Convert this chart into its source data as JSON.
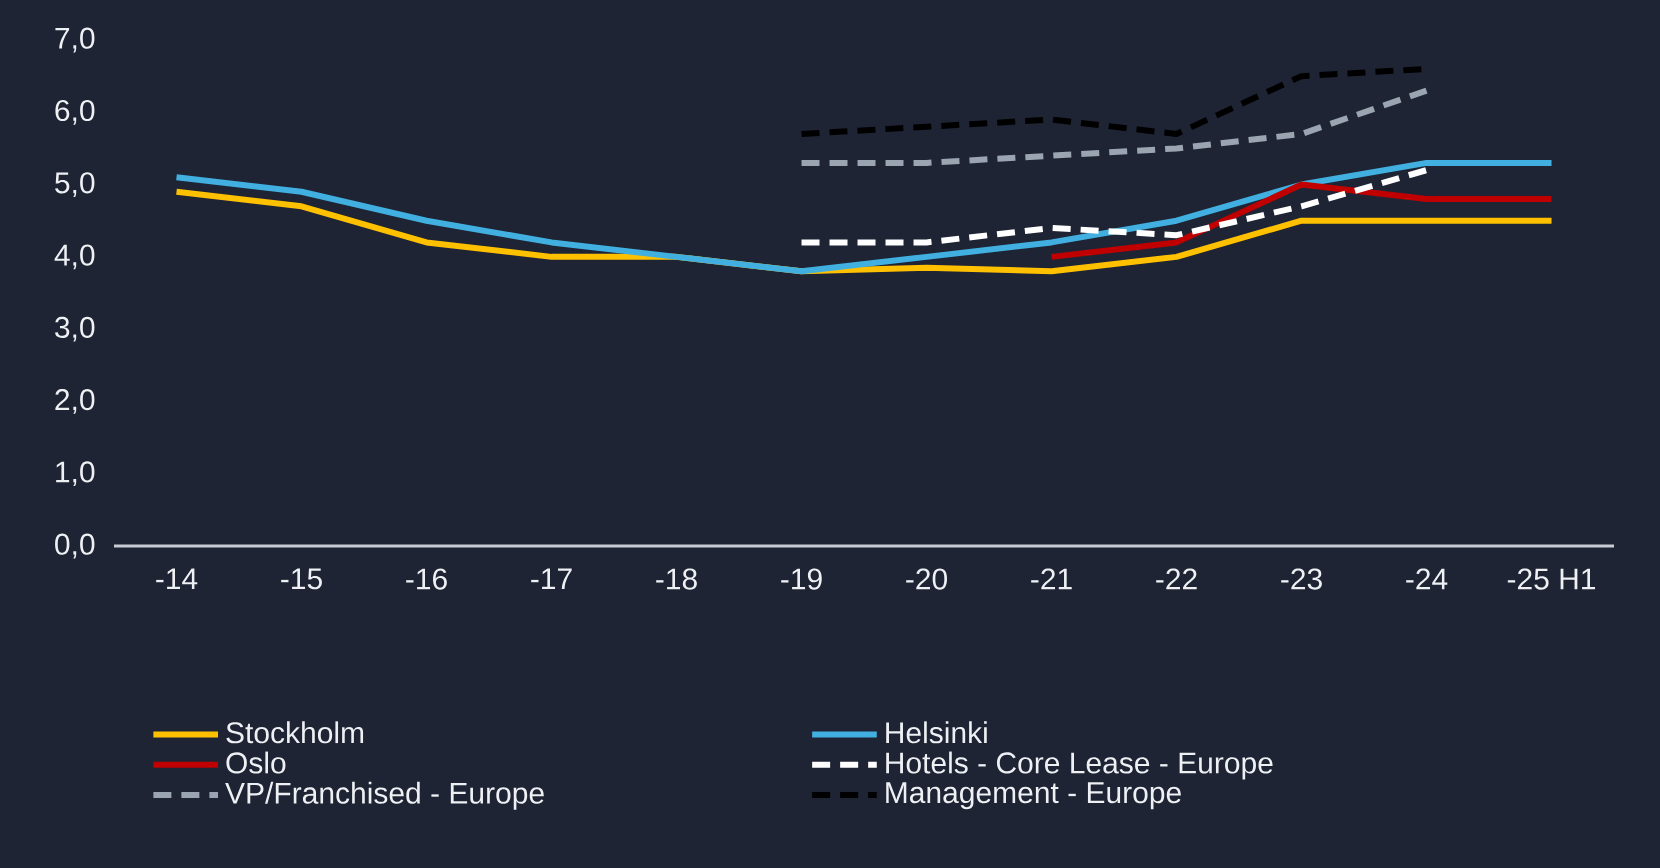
{
  "chart_data": {
    "type": "line",
    "categories": [
      "-14",
      "-15",
      "-16",
      "-17",
      "-18",
      "-19",
      "-20",
      "-21",
      "-22",
      "-23",
      "-24",
      "-25 H1"
    ],
    "series": [
      {
        "name": "Stockholm",
        "color": "#ffc000",
        "line_style": "solid",
        "values": [
          4.9,
          4.7,
          4.2,
          4.0,
          4.0,
          3.8,
          3.85,
          3.8,
          4.0,
          4.5,
          4.5,
          4.5
        ]
      },
      {
        "name": "Helsinki",
        "color": "#41b0e0",
        "line_style": "solid",
        "values": [
          5.1,
          4.9,
          4.5,
          4.2,
          4.0,
          3.8,
          4.0,
          4.2,
          4.5,
          5.0,
          5.3,
          5.3
        ]
      },
      {
        "name": "Oslo",
        "color": "#c00000",
        "line_style": "solid",
        "values": [
          null,
          null,
          null,
          null,
          null,
          null,
          null,
          4.0,
          4.2,
          5.0,
          4.8,
          4.8
        ]
      },
      {
        "name": "Hotels - Core Lease - Europe",
        "color": "#ffffff",
        "line_style": "dashed",
        "values": [
          null,
          null,
          null,
          null,
          null,
          4.2,
          4.2,
          4.4,
          4.3,
          4.7,
          5.2,
          null
        ]
      },
      {
        "name": "VP/Franchised - Europe",
        "color": "#9aa5b1",
        "line_style": "dashed",
        "values": [
          null,
          null,
          null,
          null,
          null,
          5.3,
          5.3,
          5.4,
          5.5,
          5.7,
          6.3,
          null
        ]
      },
      {
        "name": "Management - Europe",
        "color": "#000000",
        "line_style": "dashed",
        "values": [
          null,
          null,
          null,
          null,
          null,
          5.7,
          5.8,
          5.9,
          5.7,
          6.5,
          6.6,
          null
        ]
      }
    ],
    "ylim": [
      0,
      7
    ],
    "yticks": [
      {
        "value": 0,
        "label": "0,0"
      },
      {
        "value": 1,
        "label": "1,0"
      },
      {
        "value": 2,
        "label": "2,0"
      },
      {
        "value": 3,
        "label": "3,0"
      },
      {
        "value": 4,
        "label": "4,0"
      },
      {
        "value": 5,
        "label": "5,0"
      },
      {
        "value": 6,
        "label": "6,0"
      },
      {
        "value": 7,
        "label": "7,0"
      }
    ],
    "grid": false,
    "legend": "bottom",
    "marker": "none"
  }
}
